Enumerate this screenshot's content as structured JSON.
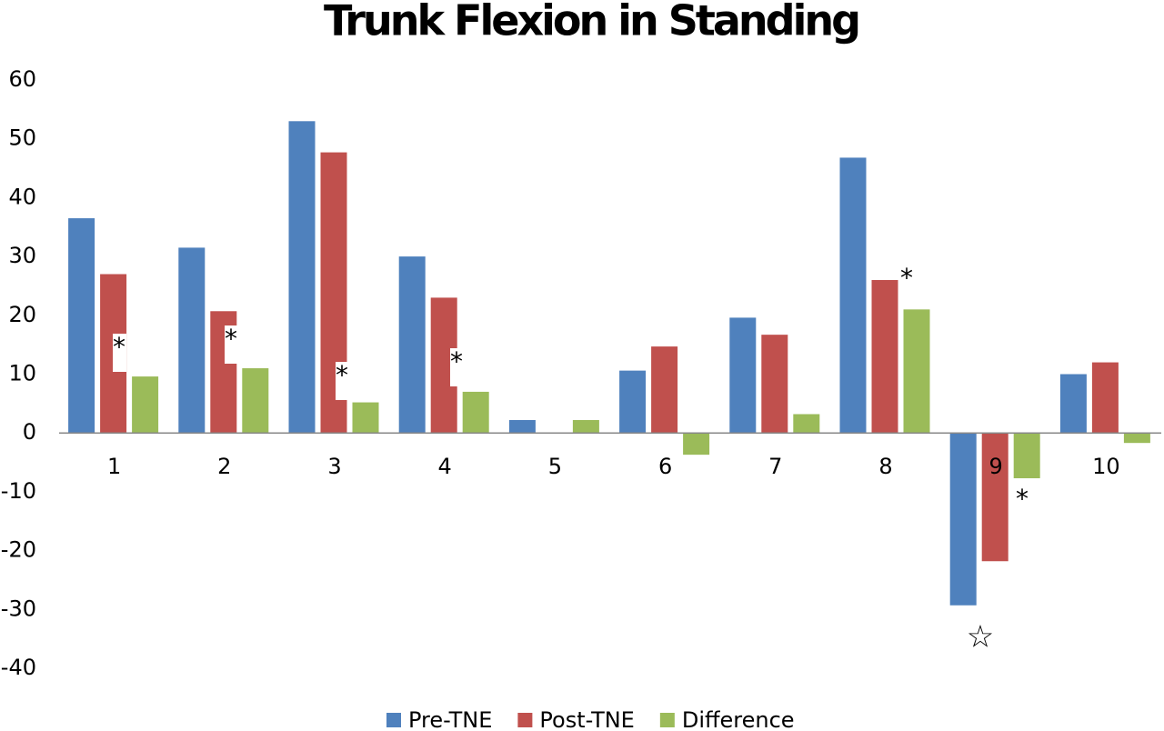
{
  "chart_data": {
    "type": "bar",
    "title": "Trunk Flexion in Standing",
    "categories": [
      "1",
      "2",
      "3",
      "4",
      "5",
      "6",
      "7",
      "8",
      "9",
      "10"
    ],
    "series": [
      {
        "name": "Pre-TNE",
        "color": "#4f81bd",
        "values": [
          36.5,
          31.5,
          53,
          30,
          2.2,
          10.6,
          19.6,
          46.8,
          -29.3,
          10
        ]
      },
      {
        "name": "Post-TNE",
        "color": "#c0504d",
        "values": [
          27,
          20.7,
          47.7,
          23,
          0,
          14.7,
          16.7,
          26,
          -21.8,
          12
        ]
      },
      {
        "name": "Difference",
        "color": "#9bbb59",
        "values": [
          9.6,
          11,
          5.2,
          7,
          2.2,
          -3.7,
          3.2,
          21,
          -7.7,
          -1.7
        ]
      }
    ],
    "ylim": [
      -40,
      60
    ],
    "yticks": [
      -40,
      -30,
      -20,
      -10,
      0,
      10,
      20,
      30,
      40,
      50,
      60
    ],
    "annotations": [
      "*",
      "*",
      "*",
      "*",
      "*",
      "*",
      "☆"
    ],
    "legend": "bottom"
  }
}
